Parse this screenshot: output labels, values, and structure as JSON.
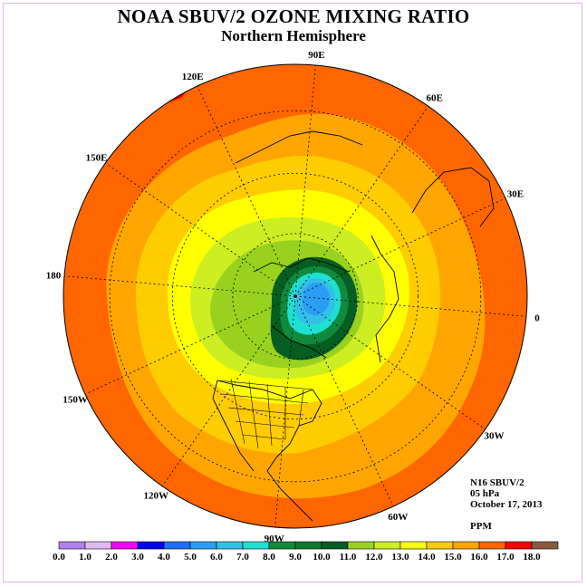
{
  "title": "NOAA SBUV/2 OZONE MIXING RATIO",
  "subtitle": "Northern Hemisphere",
  "longitude_labels": [
    {
      "text": "90E",
      "lon": 90
    },
    {
      "text": "60E",
      "lon": 60
    },
    {
      "text": "30E",
      "lon": 30
    },
    {
      "text": "0",
      "lon": 0
    },
    {
      "text": "30W",
      "lon": -30
    },
    {
      "text": "60W",
      "lon": -60
    },
    {
      "text": "90W",
      "lon": -90
    },
    {
      "text": "120W",
      "lon": -120
    },
    {
      "text": "150W",
      "lon": -150
    },
    {
      "text": "180",
      "lon": 180
    },
    {
      "text": "150E",
      "lon": 150
    },
    {
      "text": "120E",
      "lon": 120
    }
  ],
  "info": {
    "instrument": "N16 SBUV/2",
    "level": "05 hPa",
    "date": "October 17, 2013",
    "units": "PPM"
  },
  "colorbar": {
    "labels": [
      "0.0",
      "1.0",
      "2.0",
      "3.0",
      "4.0",
      "5.0",
      "6.0",
      "7.0",
      "8.0",
      "9.0",
      "10.0",
      "11.0",
      "12.0",
      "13.0",
      "14.0",
      "15.0",
      "16.0",
      "17.0",
      "18.0"
    ],
    "colors": [
      "#b07ff0",
      "#e0b8f0",
      "#ff00ff",
      "#0000ff",
      "#1c70ff",
      "#2a9ef5",
      "#33bfe8",
      "#1ee0d0",
      "#108a3c",
      "#0c7a2e",
      "#075e22",
      "#99d21e",
      "#ccee22",
      "#ffff00",
      "#ffcc00",
      "#ffa500",
      "#ff6600",
      "#ff0000",
      "#8b5a3c"
    ]
  }
}
